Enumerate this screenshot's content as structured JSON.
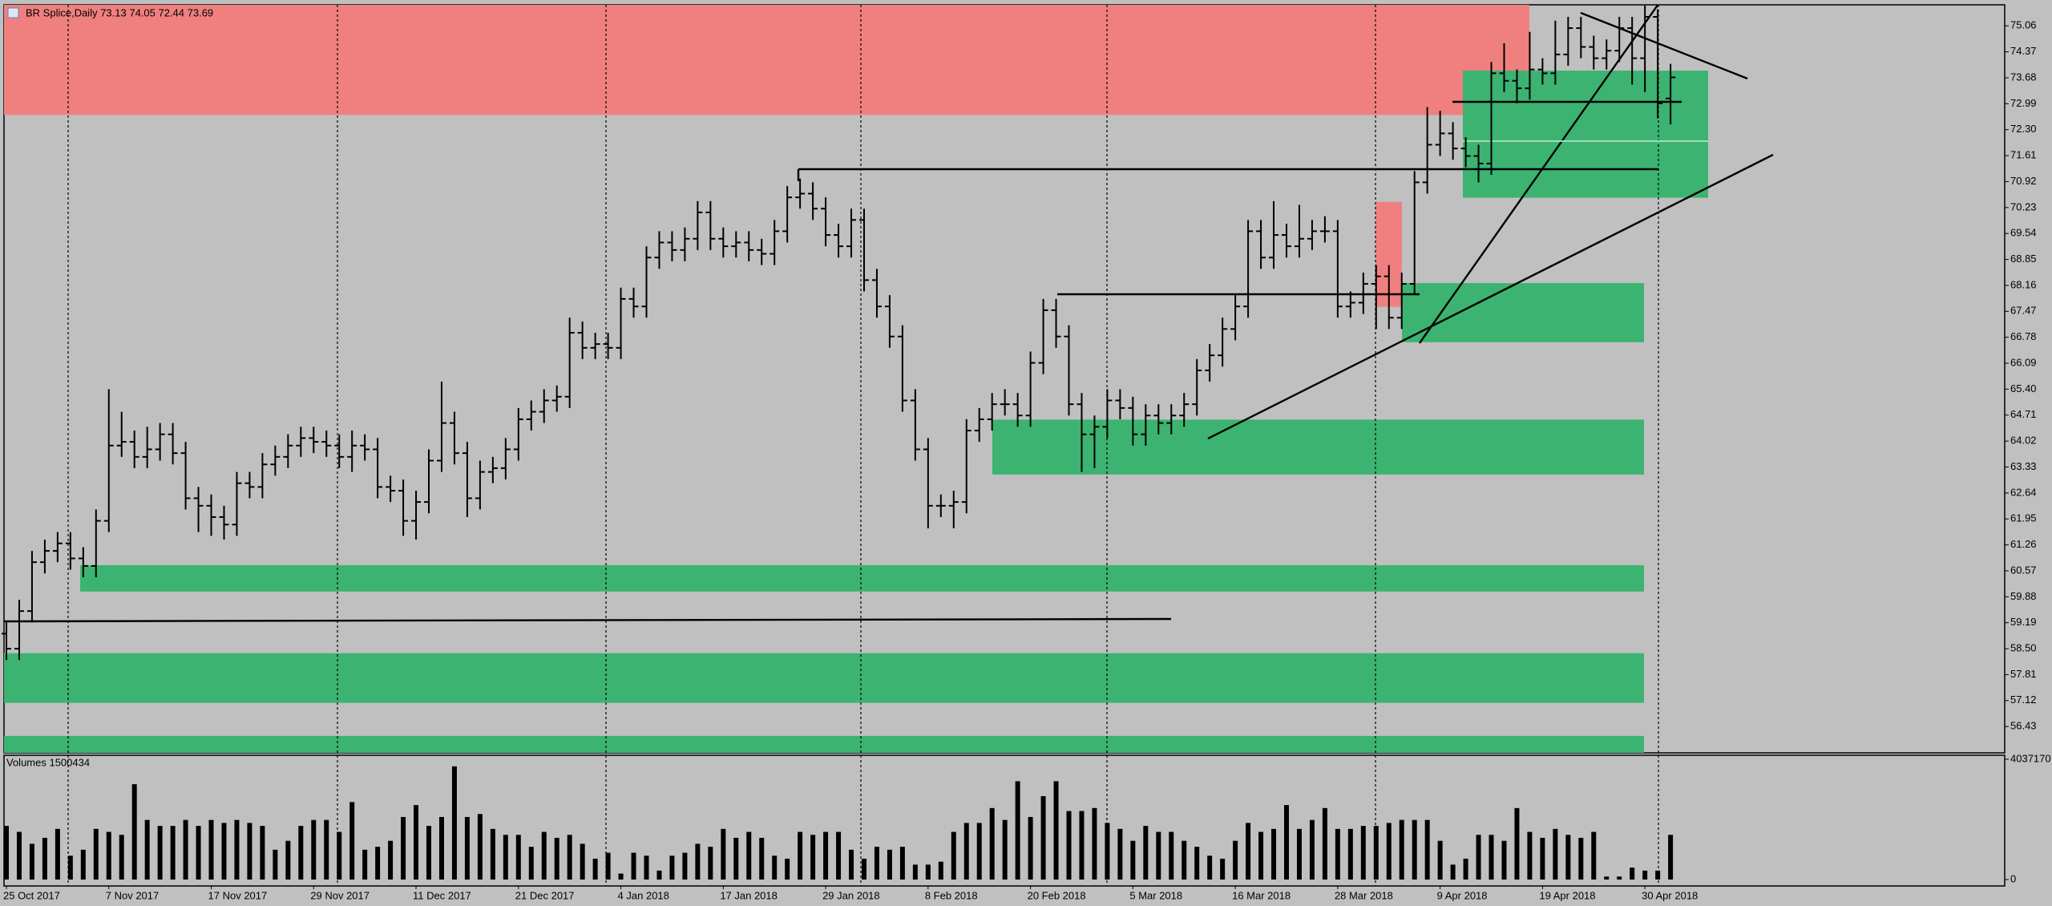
{
  "chart_data": {
    "type": "ohlc",
    "title": "BR Splice,Daily  73.13 74.05 72.44 73.69",
    "color": "#000000",
    "categories": [
      "25 Oct 2017",
      null,
      null,
      null,
      null,
      null,
      null,
      null,
      "7 Nov 2017",
      null,
      null,
      null,
      null,
      null,
      null,
      null,
      "17 Nov 2017",
      null,
      null,
      null,
      null,
      null,
      null,
      null,
      "29 Nov 2017",
      null,
      null,
      null,
      null,
      null,
      null,
      null,
      "11 Dec 2017",
      null,
      null,
      null,
      null,
      null,
      null,
      null,
      "21 Dec 2017",
      null,
      null,
      null,
      null,
      null,
      null,
      null,
      "4 Jan 2018",
      null,
      null,
      null,
      null,
      null,
      null,
      null,
      "17 Jan 2018",
      null,
      null,
      null,
      null,
      null,
      null,
      null,
      "29 Jan 2018",
      null,
      null,
      null,
      null,
      null,
      null,
      null,
      "8 Feb 2018",
      null,
      null,
      null,
      null,
      null,
      null,
      null,
      "20 Feb 2018",
      null,
      null,
      null,
      null,
      null,
      null,
      null,
      "5 Mar 2018",
      null,
      null,
      null,
      null,
      null,
      null,
      null,
      "16 Mar 2018",
      null,
      null,
      null,
      null,
      null,
      null,
      null,
      "28 Mar 2018",
      null,
      null,
      null,
      null,
      null,
      null,
      null,
      "9 Apr 2018",
      null,
      null,
      null,
      null,
      null,
      null,
      null,
      "19 Apr 2018",
      null,
      null,
      null,
      null,
      null,
      null,
      null,
      "30 Apr 2018",
      null,
      null
    ],
    "open": [
      58.9,
      58.5,
      59.5,
      60.8,
      61.1,
      61.3,
      60.9,
      60.7,
      61.9,
      63.9,
      64.0,
      63.6,
      63.8,
      64.2,
      63.7,
      62.5,
      62.3,
      62.0,
      61.8,
      62.9,
      62.8,
      63.4,
      63.6,
      63.9,
      64.1,
      64.0,
      63.9,
      63.6,
      63.9,
      63.8,
      62.8,
      62.7,
      61.9,
      62.4,
      63.5,
      64.5,
      63.7,
      62.5,
      63.2,
      63.3,
      63.8,
      64.6,
      64.8,
      65.1,
      65.2,
      66.9,
      66.5,
      66.6,
      66.5,
      67.8,
      67.6,
      68.9,
      69.3,
      69.1,
      69.4,
      70.1,
      69.4,
      69.2,
      69.3,
      69.1,
      69.0,
      69.6,
      70.5,
      70.6,
      70.2,
      69.5,
      69.2,
      69.9,
      68.3,
      67.6,
      66.8,
      65.1,
      63.8,
      62.3,
      62.3,
      62.4,
      64.3,
      64.6,
      65.0,
      65.0,
      64.7,
      66.1,
      67.5,
      66.8,
      65.0,
      64.2,
      64.4,
      65.1,
      64.9,
      64.2,
      64.7,
      64.5,
      64.7,
      65.0,
      65.9,
      66.3,
      67.0,
      67.6,
      69.6,
      68.9,
      69.5,
      69.2,
      69.4,
      69.6,
      69.6,
      67.6,
      67.7,
      68.2,
      68.4,
      67.3,
      68.2,
      70.9,
      71.9,
      72.2,
      71.8,
      71.6,
      71.4,
      73.8,
      73.6,
      73.4,
      73.9,
      73.8,
      74.3,
      75.0,
      74.5,
      74.2,
      74.4,
      75.0,
      74.2,
      75.3,
      73.13
    ],
    "high": [
      59.2,
      59.8,
      61.1,
      61.4,
      61.6,
      61.6,
      61.2,
      62.2,
      65.4,
      64.8,
      64.3,
      64.4,
      64.5,
      64.5,
      64.0,
      62.8,
      62.6,
      62.3,
      63.2,
      63.2,
      63.7,
      63.9,
      64.2,
      64.4,
      64.4,
      64.3,
      64.2,
      64.3,
      64.2,
      64.1,
      63.1,
      63.0,
      62.7,
      63.8,
      65.6,
      64.8,
      64.0,
      63.5,
      63.6,
      64.1,
      64.9,
      65.1,
      65.4,
      65.5,
      67.3,
      67.2,
      66.9,
      66.9,
      68.1,
      68.1,
      69.2,
      69.6,
      69.6,
      69.7,
      70.4,
      70.4,
      69.7,
      69.6,
      69.6,
      69.4,
      69.9,
      70.8,
      71.0,
      70.9,
      70.5,
      69.8,
      70.2,
      70.2,
      68.6,
      67.9,
      67.1,
      65.4,
      64.1,
      62.6,
      62.7,
      64.6,
      64.9,
      65.3,
      65.4,
      65.3,
      66.4,
      67.8,
      67.8,
      67.1,
      65.3,
      64.7,
      65.4,
      65.4,
      65.2,
      65.0,
      65.0,
      65.0,
      65.3,
      66.2,
      66.6,
      67.3,
      67.9,
      69.9,
      69.9,
      70.4,
      69.8,
      70.3,
      69.9,
      70.0,
      69.9,
      68.0,
      68.5,
      68.7,
      68.7,
      68.5,
      71.2,
      72.9,
      72.8,
      72.5,
      72.1,
      71.9,
      74.1,
      74.6,
      73.9,
      74.9,
      74.2,
      75.2,
      75.3,
      75.3,
      74.8,
      74.7,
      75.3,
      75.3,
      75.6,
      75.5,
      74.05
    ],
    "low": [
      58.2,
      58.2,
      59.2,
      60.5,
      60.8,
      60.6,
      60.4,
      60.4,
      61.6,
      63.6,
      63.3,
      63.3,
      63.5,
      63.4,
      62.2,
      61.6,
      61.5,
      61.4,
      61.5,
      62.5,
      62.5,
      63.1,
      63.3,
      63.6,
      63.7,
      63.6,
      63.3,
      63.2,
      63.5,
      62.5,
      62.4,
      61.5,
      61.4,
      62.1,
      63.2,
      63.4,
      62.0,
      62.2,
      62.9,
      63.0,
      63.5,
      64.3,
      64.5,
      64.8,
      64.9,
      66.2,
      66.2,
      66.2,
      66.2,
      67.3,
      67.3,
      68.6,
      68.8,
      68.8,
      69.1,
      69.1,
      68.9,
      68.9,
      68.8,
      68.7,
      68.7,
      69.3,
      70.2,
      69.9,
      69.2,
      68.9,
      68.9,
      68.0,
      67.3,
      66.5,
      64.8,
      63.5,
      61.7,
      62.0,
      61.7,
      62.1,
      64.0,
      64.3,
      64.7,
      64.4,
      64.4,
      65.8,
      66.5,
      64.7,
      63.2,
      63.3,
      64.1,
      64.6,
      63.9,
      63.9,
      64.2,
      64.2,
      64.4,
      64.7,
      65.6,
      66.0,
      66.7,
      67.3,
      68.6,
      68.6,
      68.9,
      68.9,
      69.1,
      69.3,
      67.3,
      67.3,
      67.4,
      67.0,
      67.0,
      67.0,
      67.9,
      70.6,
      71.6,
      71.5,
      71.3,
      70.9,
      71.1,
      73.3,
      73.0,
      73.1,
      73.5,
      73.5,
      74.0,
      74.2,
      73.9,
      73.9,
      74.1,
      73.5,
      73.3,
      72.6,
      72.44
    ],
    "close": [
      58.5,
      59.5,
      60.8,
      61.1,
      61.3,
      60.9,
      60.7,
      61.9,
      63.9,
      64.0,
      63.6,
      63.8,
      64.2,
      63.7,
      62.5,
      62.3,
      62.0,
      61.8,
      62.9,
      62.8,
      63.4,
      63.6,
      63.9,
      64.1,
      64.0,
      63.9,
      63.6,
      63.9,
      63.8,
      62.8,
      62.7,
      61.9,
      62.4,
      63.5,
      64.5,
      63.7,
      62.5,
      63.2,
      63.3,
      63.8,
      64.6,
      64.8,
      65.1,
      65.2,
      66.9,
      66.5,
      66.6,
      66.5,
      67.8,
      67.6,
      68.9,
      69.3,
      69.1,
      69.4,
      70.1,
      69.4,
      69.2,
      69.3,
      69.1,
      69.0,
      69.6,
      70.5,
      70.6,
      70.2,
      69.5,
      69.2,
      69.9,
      68.3,
      67.6,
      66.8,
      65.1,
      63.8,
      62.3,
      62.3,
      62.4,
      64.3,
      64.6,
      65.0,
      65.0,
      64.7,
      66.1,
      67.5,
      66.8,
      65.0,
      64.2,
      64.4,
      65.1,
      64.9,
      64.2,
      64.7,
      64.5,
      64.7,
      65.0,
      65.9,
      66.3,
      67.0,
      67.6,
      69.6,
      68.9,
      69.5,
      69.2,
      69.4,
      69.6,
      69.6,
      67.6,
      67.7,
      68.2,
      68.4,
      67.3,
      68.2,
      70.9,
      71.9,
      72.2,
      71.8,
      71.6,
      71.4,
      73.8,
      73.6,
      73.4,
      73.9,
      73.8,
      74.3,
      75.0,
      74.5,
      74.2,
      74.4,
      75.0,
      74.2,
      75.3,
      73.0,
      73.69
    ],
    "ylim": [
      55.73,
      75.62
    ],
    "yticks": [
      75.06,
      74.37,
      73.68,
      72.99,
      {
        "value": 72.3,
        "label": "72.30"
      },
      71.61,
      70.92,
      70.23,
      69.54,
      68.85,
      68.16,
      67.47,
      66.78,
      66.09,
      {
        "value": 65.4,
        "label": "65.40"
      },
      64.71,
      64.02,
      63.33,
      62.64,
      61.95,
      61.26,
      60.57,
      59.88,
      59.19,
      {
        "value": 58.5,
        "label": "58.50"
      },
      57.81,
      57.12,
      56.43
    ],
    "zones": [
      {
        "color": "#f08080",
        "low": 72.69,
        "high": 75.62
      },
      {
        "color": "#f08080",
        "low": 67.59,
        "high": 70.38
      },
      {
        "color": "#3cb371",
        "low": 70.49,
        "high": 73.87
      },
      {
        "color": "#3cb371",
        "low": 66.65,
        "high": 68.22
      },
      {
        "color": "#3cb371",
        "low": 63.13,
        "high": 64.59
      },
      {
        "color": "#3cb371",
        "low": 60.02,
        "high": 60.72
      },
      {
        "color": "#3cb371",
        "low": 57.06,
        "high": 58.38
      },
      {
        "color": "#3cb371",
        "low": 55.73,
        "high": 56.18
      }
    ],
    "volume": {
      "type": "bar",
      "title": "Volumes 1500434",
      "color": "#000000",
      "values": [
        1800000,
        1600000,
        1200000,
        1400000,
        1700000,
        800000,
        1000000,
        1700000,
        1600000,
        1500000,
        3200000,
        2000000,
        1800000,
        1800000,
        2000000,
        1800000,
        2000000,
        1900000,
        2000000,
        1900000,
        1800000,
        1000000,
        1300000,
        1800000,
        2000000,
        2000000,
        1600000,
        2600000,
        1000000,
        1100000,
        1300000,
        2100000,
        2500000,
        1800000,
        2100000,
        3800000,
        2100000,
        2200000,
        1700000,
        1500000,
        1500000,
        1100000,
        1600000,
        1400000,
        1500000,
        1200000,
        700000,
        900000,
        200000,
        900000,
        800000,
        300000,
        800000,
        900000,
        1200000,
        1100000,
        1700000,
        1400000,
        1600000,
        1400000,
        800000,
        700000,
        1600000,
        1500000,
        1600000,
        1600000,
        1000000,
        700000,
        1100000,
        1000000,
        1100000,
        500000,
        500000,
        600000,
        1600000,
        1900000,
        1900000,
        2400000,
        2000000,
        3300000,
        2100000,
        2800000,
        3300000,
        2300000,
        2300000,
        2400000,
        1900000,
        1700000,
        1300000,
        1800000,
        1600000,
        1600000,
        1300000,
        1100000,
        800000,
        700000,
        1300000,
        1900000,
        1600000,
        1700000,
        2500000,
        1700000,
        2000000,
        2400000,
        1700000,
        1700000,
        1800000,
        1800000,
        1900000,
        2000000,
        2000000,
        2000000,
        1300000,
        500000,
        700000,
        1500000,
        1500000,
        1300000,
        2400000,
        1600000,
        1400000,
        1700000,
        1500000,
        1400000,
        1600000,
        100000,
        100000,
        400000,
        300000,
        300000,
        1500434
      ],
      "ylim": [
        0,
        4037170
      ],
      "yticks": [
        4037170,
        0
      ]
    }
  }
}
